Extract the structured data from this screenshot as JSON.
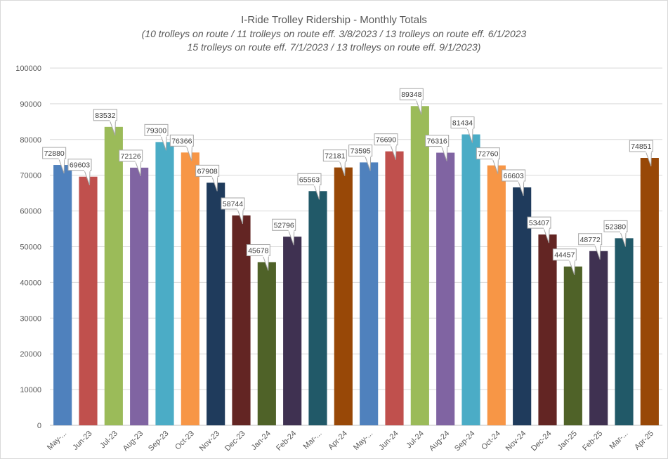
{
  "chart_data": {
    "type": "bar",
    "title": "I-Ride Trolley Ridership - Monthly Totals",
    "subtitle_lines": [
      "(10 trolleys on route / 11 trolleys on route eff. 3/8/2023 / 13 trolleys on route eff. 6/1/2023",
      "15 trolleys on route eff. 7/1/2023 / 13 trolleys on route eff. 9/1/2023)"
    ],
    "xlabel": "",
    "ylabel": "",
    "ylim": [
      0,
      100000
    ],
    "ytick_step": 10000,
    "yticks": [
      "0",
      "10000",
      "20000",
      "30000",
      "40000",
      "50000",
      "60000",
      "70000",
      "80000",
      "90000",
      "100000"
    ],
    "grid": true,
    "legend": "none",
    "categories": [
      "May-...",
      "Jun-23",
      "Jul-23",
      "Aug-23",
      "Sep-23",
      "Oct-23",
      "Nov-23",
      "Dec-23",
      "Jan-24",
      "Feb-24",
      "Mar-...",
      "Apr-24",
      "May-...",
      "Jun-24",
      "Jul-24",
      "Aug-24",
      "Sep-24",
      "Oct-24",
      "Nov-24",
      "Dec-24",
      "Jan-25",
      "Feb-25",
      "Mar-...",
      "Apr-25"
    ],
    "values": [
      72880,
      69603,
      83532,
      72126,
      79300,
      76366,
      67908,
      58744,
      45678,
      52796,
      65563,
      72181,
      73595,
      76690,
      89348,
      76316,
      81434,
      72760,
      66603,
      53407,
      44457,
      48772,
      52380,
      74851
    ],
    "bar_colors": [
      "#4f81bd",
      "#c0504d",
      "#9bbb59",
      "#8064a2",
      "#4bacc6",
      "#f79646",
      "#1f3b5c",
      "#632523",
      "#4f6228",
      "#3f3151",
      "#215968",
      "#984807",
      "#4f81bd",
      "#c0504d",
      "#9bbb59",
      "#8064a2",
      "#4bacc6",
      "#f79646",
      "#1f3b5c",
      "#632523",
      "#4f6228",
      "#3f3151",
      "#215968",
      "#984807"
    ],
    "colors": {
      "grid": "#d9d9d9",
      "axis": "#bfbfbf",
      "text": "#595959",
      "label_border": "#a6a6a6"
    }
  }
}
